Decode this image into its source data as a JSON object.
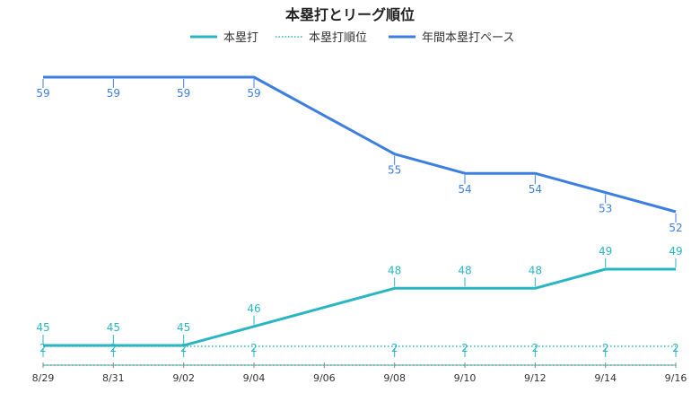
{
  "chart_data": {
    "type": "line",
    "title": "本塁打とリーグ順位",
    "categories": [
      "8/29",
      "8/31",
      "9/02",
      "9/04",
      "9/06",
      "9/08",
      "9/10",
      "9/12",
      "9/14",
      "9/16"
    ],
    "series": [
      {
        "name": "本塁打",
        "color": "#2ab5c3",
        "style": "solid",
        "values": [
          45,
          45,
          45,
          46,
          null,
          48,
          48,
          48,
          49,
          49
        ]
      },
      {
        "name": "本塁打順位",
        "color": "#2ab5c3",
        "style": "dotted",
        "values": [
          2,
          2,
          2,
          2,
          null,
          2,
          2,
          2,
          2,
          2
        ]
      },
      {
        "name": "年間本塁打ペース",
        "color": "#3d7fe0",
        "style": "solid",
        "values": [
          59,
          59,
          59,
          59,
          null,
          55,
          54,
          54,
          53,
          52
        ]
      }
    ],
    "legend_position": "top-center",
    "grid": false
  }
}
